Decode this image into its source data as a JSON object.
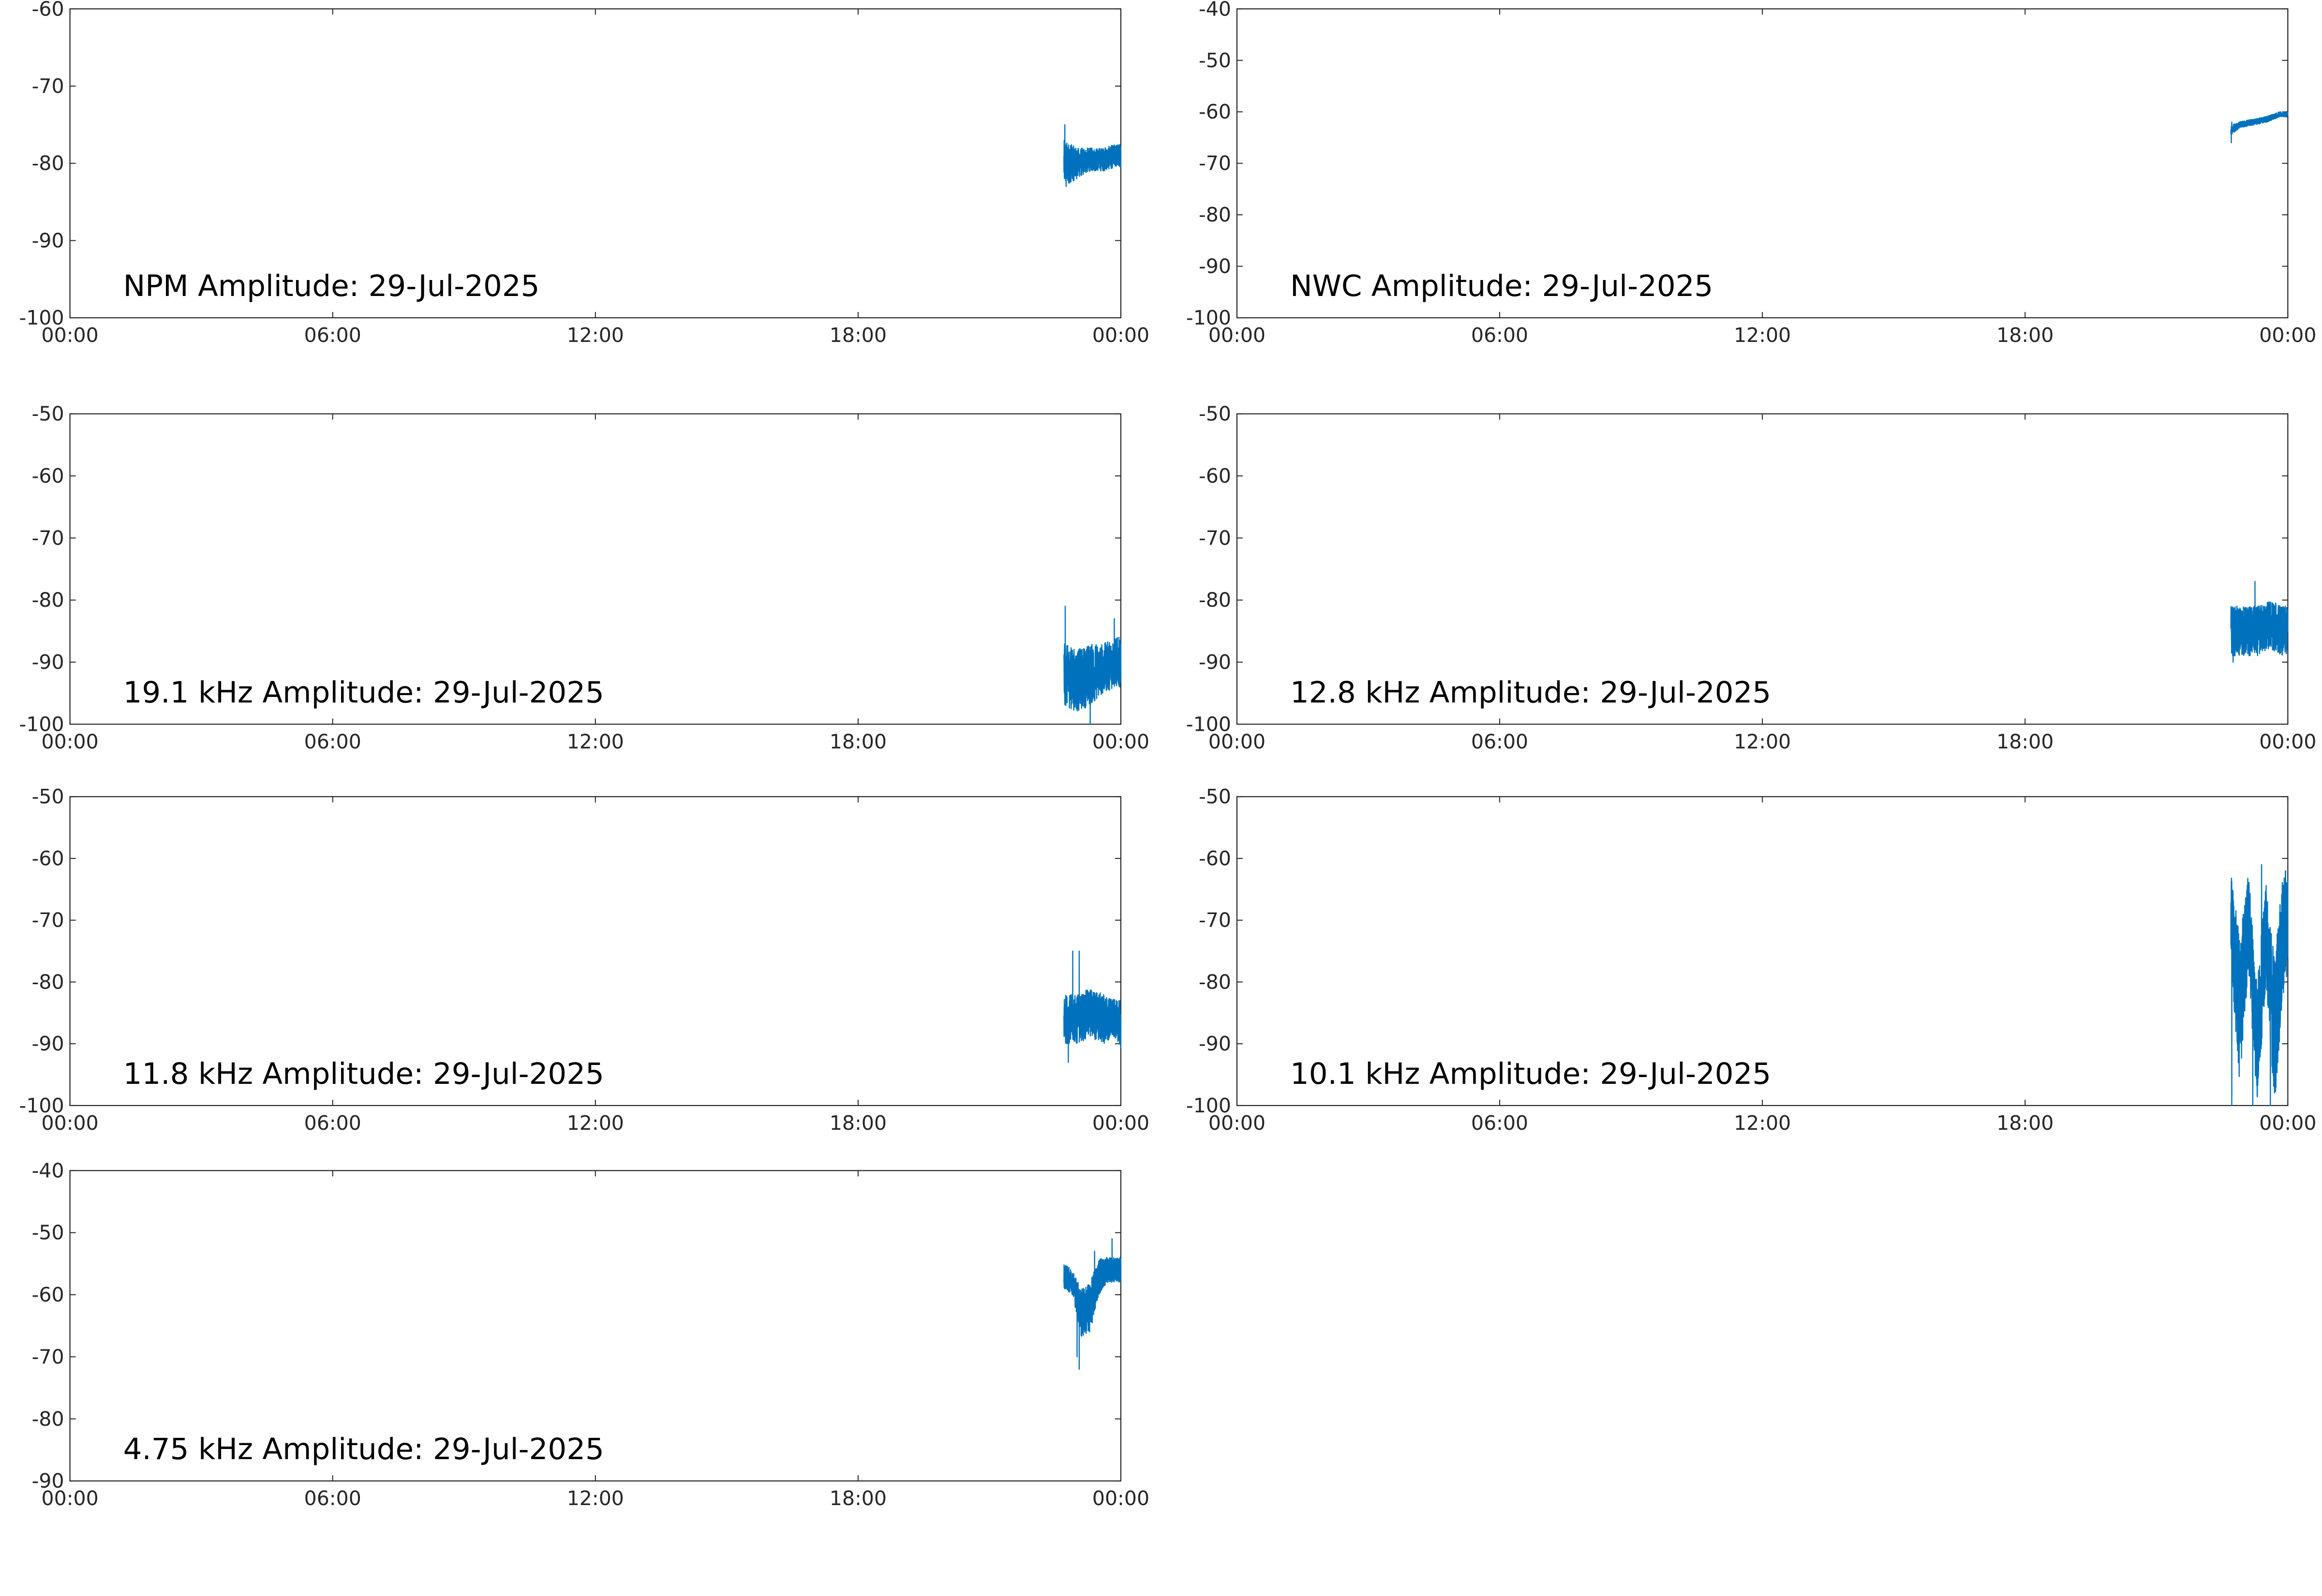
{
  "figure": {
    "x_tick_labels": [
      "00:00",
      "06:00",
      "12:00",
      "18:00",
      "00:00"
    ],
    "series_color": "#0072BD"
  },
  "chart_data": [
    {
      "type": "line",
      "title": "NPM Amplitude: 29-Jul-2025",
      "x_range_hours": [
        0,
        24
      ],
      "ylim": [
        -100,
        -60
      ],
      "y_ticks": [
        -60,
        -70,
        -80,
        -90,
        -100
      ],
      "grid": false,
      "series": [
        {
          "x_hours": [
            22.7,
            23.0,
            23.3,
            23.6,
            23.9,
            24.0
          ],
          "center": [
            -80,
            -80,
            -79.5,
            -79.5,
            -79,
            -79
          ],
          "spread": [
            3,
            2,
            1.5,
            1.5,
            1.5,
            1.5
          ],
          "spikes": [
            [
              22.72,
              -75
            ],
            [
              22.75,
              -83
            ]
          ]
        }
      ]
    },
    {
      "type": "line",
      "title": "NWC Amplitude: 29-Jul-2025",
      "x_range_hours": [
        0,
        24
      ],
      "ylim": [
        -100,
        -40
      ],
      "y_ticks": [
        -40,
        -50,
        -60,
        -70,
        -80,
        -90,
        -100
      ],
      "grid": false,
      "series": [
        {
          "x_hours": [
            22.7,
            22.9,
            23.2,
            23.5,
            23.8,
            24.0
          ],
          "center": [
            -63.5,
            -62.5,
            -62,
            -61.5,
            -60.5,
            -60.5
          ],
          "spread": [
            1.0,
            0.6,
            0.6,
            0.6,
            0.5,
            0.5
          ],
          "spikes": [
            [
              22.71,
              -66
            ],
            [
              22.72,
              -62
            ]
          ]
        }
      ]
    },
    {
      "type": "line",
      "title": "19.1 kHz Amplitude: 29-Jul-2025",
      "x_range_hours": [
        0,
        24
      ],
      "ylim": [
        -100,
        -50
      ],
      "y_ticks": [
        -50,
        -60,
        -70,
        -80,
        -90,
        -100
      ],
      "grid": false,
      "series": [
        {
          "x_hours": [
            22.7,
            23.0,
            23.3,
            23.6,
            23.9,
            24.0
          ],
          "center": [
            -92,
            -93,
            -92,
            -91,
            -90,
            -90
          ],
          "spread": [
            5,
            5,
            5,
            4,
            4,
            4
          ],
          "spikes": [
            [
              22.73,
              -81
            ],
            [
              23.3,
              -100
            ],
            [
              23.85,
              -83
            ]
          ]
        }
      ]
    },
    {
      "type": "line",
      "title": "12.8 kHz Amplitude: 29-Jul-2025",
      "x_range_hours": [
        0,
        24
      ],
      "ylim": [
        -100,
        -50
      ],
      "y_ticks": [
        -50,
        -60,
        -70,
        -80,
        -90,
        -100
      ],
      "grid": false,
      "series": [
        {
          "x_hours": [
            22.7,
            23.0,
            23.3,
            23.6,
            23.9,
            24.0
          ],
          "center": [
            -85,
            -85,
            -85,
            -84,
            -85,
            -85
          ],
          "spread": [
            4,
            4,
            4,
            4,
            4,
            4
          ],
          "spikes": [
            [
              23.25,
              -77
            ],
            [
              22.75,
              -90
            ]
          ]
        }
      ]
    },
    {
      "type": "line",
      "title": "11.8 kHz Amplitude: 29-Jul-2025",
      "x_range_hours": [
        0,
        24
      ],
      "ylim": [
        -100,
        -50
      ],
      "y_ticks": [
        -50,
        -60,
        -70,
        -80,
        -90,
        -100
      ],
      "grid": false,
      "series": [
        {
          "x_hours": [
            22.7,
            23.0,
            23.3,
            23.6,
            23.9,
            24.0
          ],
          "center": [
            -86,
            -86,
            -85,
            -86,
            -86,
            -87
          ],
          "spread": [
            4,
            4,
            4,
            4,
            3,
            4
          ],
          "spikes": [
            [
              22.9,
              -75
            ],
            [
              23.05,
              -75
            ],
            [
              22.8,
              -93
            ]
          ]
        }
      ]
    },
    {
      "type": "line",
      "title": "10.1 kHz Amplitude: 29-Jul-2025",
      "x_range_hours": [
        0,
        24
      ],
      "ylim": [
        -100,
        -50
      ],
      "y_ticks": [
        -50,
        -60,
        -70,
        -80,
        -90,
        -100
      ],
      "grid": false,
      "series": [
        {
          "x_hours": [
            22.7,
            22.9,
            23.1,
            23.3,
            23.5,
            23.7,
            23.9,
            24.0
          ],
          "center": [
            -70,
            -85,
            -70,
            -90,
            -72,
            -88,
            -72,
            -70
          ],
          "spread": [
            8,
            12,
            8,
            10,
            8,
            12,
            10,
            8
          ],
          "spikes": [
            [
              22.72,
              -100
            ],
            [
              23.2,
              -100
            ],
            [
              23.6,
              -100
            ],
            [
              23.4,
              -61
            ],
            [
              23.95,
              -62
            ]
          ]
        }
      ]
    },
    {
      "type": "line",
      "title": "4.75 kHz Amplitude: 29-Jul-2025",
      "x_range_hours": [
        0,
        24
      ],
      "ylim": [
        -90,
        -40
      ],
      "y_ticks": [
        -40,
        -50,
        -60,
        -70,
        -80,
        -90
      ],
      "grid": false,
      "series": [
        {
          "x_hours": [
            22.7,
            22.9,
            23.1,
            23.3,
            23.5,
            23.7,
            23.9,
            24.0
          ],
          "center": [
            -57,
            -58,
            -63,
            -62,
            -57,
            -56,
            -56,
            -56
          ],
          "spread": [
            2,
            2,
            4,
            4,
            3,
            2,
            2,
            2
          ],
          "spikes": [
            [
              23.05,
              -72
            ],
            [
              23.0,
              -70
            ],
            [
              23.8,
              -51
            ],
            [
              23.4,
              -53
            ]
          ]
        }
      ]
    }
  ]
}
